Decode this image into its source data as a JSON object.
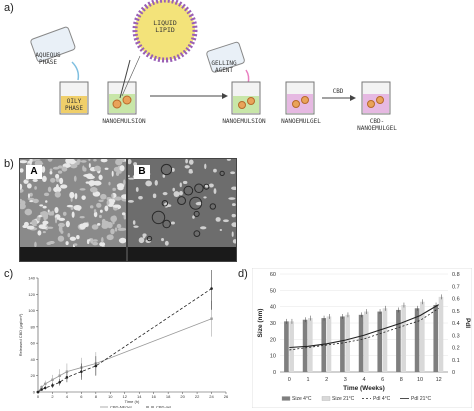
{
  "panels": {
    "a": {
      "letter": "a)"
    },
    "b": {
      "letter": "b)",
      "images": [
        {
          "tag": "A"
        },
        {
          "tag": "B"
        }
      ]
    },
    "c": {
      "letter": "c)"
    },
    "d": {
      "letter": "d)"
    }
  },
  "schematic": {
    "aqueous_phase": "AQUEOUS\nPHASE",
    "oily_phase": "OILY\nPHASE",
    "liquid_lipid": "LIQUID\nLIPID",
    "gelling_agent": "GELLING\nAGENT",
    "nanoemulsion_1": "NANOEMULSION",
    "nanoemulsion_2": "NANOEMULSION",
    "nanoemulgel": "NANOEMULGEL",
    "cbd_arrow": "CBD",
    "cbd_nanoemulgel": "CBD-\nNANOEMULGEL"
  },
  "chart_data": [
    {
      "type": "line",
      "panel": "c",
      "xlabel": "Time (h)",
      "ylabel": "Released CBD (µg/cm²)",
      "xlim": [
        0,
        26
      ],
      "ylim": [
        0,
        140
      ],
      "xticks": [
        0,
        2,
        4,
        6,
        8,
        10,
        12,
        14,
        16,
        18,
        20,
        22,
        24,
        26
      ],
      "yticks": [
        0,
        20,
        40,
        60,
        80,
        100,
        120,
        140
      ],
      "x": [
        0,
        0.5,
        1,
        2,
        3,
        4,
        6,
        8,
        24
      ],
      "series": [
        {
          "name": "CBD-NEGel",
          "color": "#9a9a9a",
          "dash": "",
          "marker": "square",
          "values": [
            0,
            6,
            10,
            15,
            20,
            25,
            30,
            35,
            90
          ],
          "errors": [
            0,
            2,
            4,
            6,
            8,
            10,
            12,
            14,
            22
          ]
        },
        {
          "name": "CBD-gel",
          "color": "#222222",
          "dash": "3,2",
          "marker": "circle",
          "values": [
            0,
            3,
            5,
            8,
            12,
            18,
            25,
            32,
            127
          ],
          "errors": [
            0,
            1,
            2,
            3,
            4,
            6,
            10,
            12,
            26
          ]
        }
      ]
    },
    {
      "type": "bar",
      "panel": "d",
      "xlabel": "Time (Weeks)",
      "ylabel": "Size (nm)",
      "y2label": "PdI",
      "categories": [
        "0",
        "1",
        "2",
        "3",
        "4",
        "6",
        "8",
        "10",
        "12"
      ],
      "ylim": [
        0,
        60
      ],
      "yticks": [
        0,
        10,
        20,
        30,
        40,
        50,
        60
      ],
      "y2lim": [
        0,
        0.8
      ],
      "y2ticks": [
        "0",
        "0.1",
        "0.2",
        "0.3",
        "0.4",
        "0.5",
        "0.6",
        "0.7",
        "0.8"
      ],
      "series": [
        {
          "name": "Size 4°C",
          "color": "#7f7f7f",
          "values": [
            31,
            32,
            33,
            34,
            35,
            37,
            38,
            39,
            41
          ]
        },
        {
          "name": "Size 21°C",
          "color": "#d9d9d9",
          "values": [
            31,
            33,
            34,
            35,
            37,
            39,
            41,
            43,
            46
          ]
        }
      ],
      "lines": [
        {
          "name": "PdI 4°C",
          "color": "#222222",
          "dash": "2,2",
          "values": [
            0.18,
            0.2,
            0.22,
            0.24,
            0.27,
            0.32,
            0.37,
            0.42,
            0.52
          ]
        },
        {
          "name": "PdI 21°C",
          "color": "#222222",
          "dash": "",
          "values": [
            0.2,
            0.21,
            0.23,
            0.26,
            0.3,
            0.35,
            0.4,
            0.46,
            0.55
          ]
        }
      ]
    }
  ]
}
